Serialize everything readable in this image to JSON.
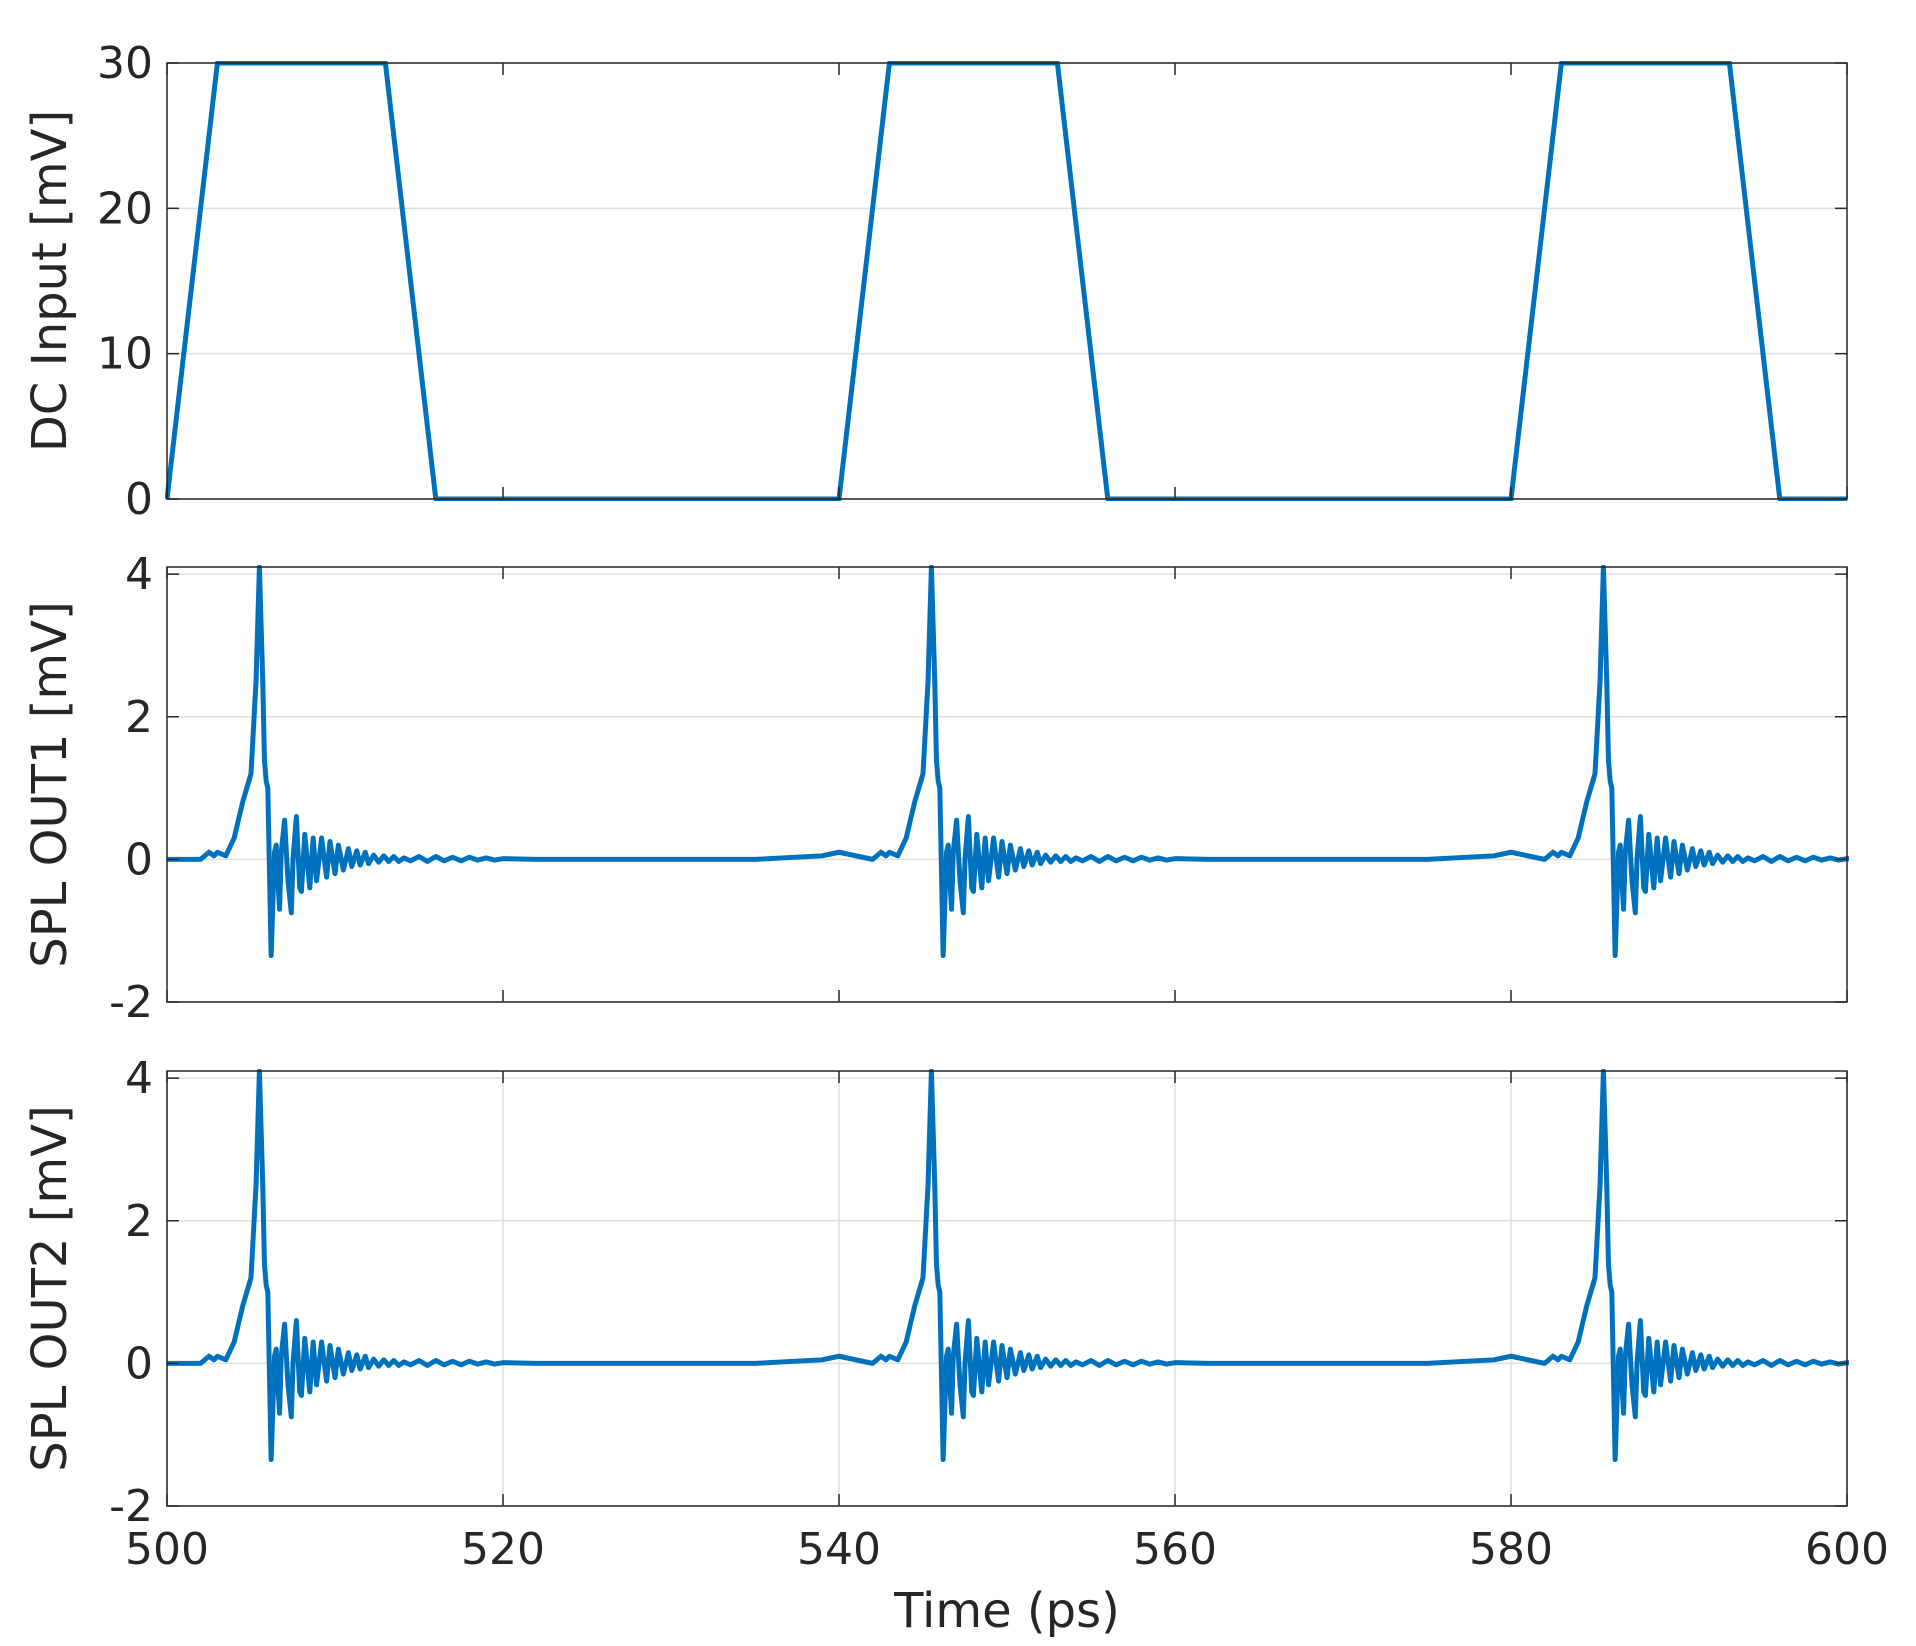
{
  "chart_data": [
    {
      "type": "line",
      "ylabel": "DC Input [mV]",
      "xlim": [
        500,
        600
      ],
      "ylim": [
        0,
        30
      ],
      "yticks": [
        0,
        10,
        20,
        30
      ],
      "ytick_labels": [
        "0",
        "10",
        "20",
        "30"
      ],
      "xticks": [
        500,
        520,
        540,
        560,
        580,
        600
      ],
      "show_xtick_labels": false,
      "grid": "horizontal",
      "series": [
        {
          "color": "#0072BD",
          "x": [
            500,
            503,
            513,
            516,
            540,
            543,
            553,
            556,
            580,
            583,
            593,
            596,
            600
          ],
          "y": [
            0,
            30,
            30,
            0,
            0,
            30,
            30,
            0,
            0,
            30,
            30,
            0,
            0
          ]
        }
      ]
    },
    {
      "type": "line",
      "ylabel": "SPL OUT1 [mV]",
      "xlim": [
        500,
        600
      ],
      "ylim": [
        -2,
        4.1
      ],
      "yticks": [
        -2,
        0,
        2,
        4
      ],
      "ytick_labels": [
        "-2",
        "0",
        "2",
        "4"
      ],
      "xticks": [
        500,
        520,
        540,
        560,
        580,
        600
      ],
      "show_xtick_labels": false,
      "grid": "horizontal",
      "pulse_times": [
        500,
        540,
        580
      ],
      "series": [
        {
          "color": "#0072BD",
          "pulse": {
            "x": [
              0,
              2.0,
              2.5,
              2.8,
              3.0,
              3.5,
              4.0,
              4.5,
              5.0,
              5.3,
              5.5,
              5.7,
              5.8,
              5.9,
              6.0,
              6.2,
              6.4,
              6.5,
              6.6,
              6.7,
              6.8,
              7.0,
              7.2,
              7.4,
              7.5,
              7.7,
              7.9,
              8.0,
              8.2,
              8.5,
              8.7,
              8.9,
              9.2,
              9.5,
              9.7,
              10.0,
              10.2,
              10.5,
              10.8,
              11.0,
              11.3,
              11.5,
              11.8,
              12.0,
              12.3,
              12.6,
              12.9,
              13.2,
              13.5,
              13.8,
              14.1,
              14.5,
              15.0,
              15.5,
              16.0,
              16.5,
              17.0,
              17.5,
              18.0,
              18.5,
              19.0,
              19.5,
              20.0,
              22.0,
              25.0,
              30.0,
              35.0,
              39.0,
              40.0
            ],
            "y": [
              0,
              0,
              0.1,
              0.05,
              0.1,
              0.05,
              0.3,
              0.8,
              1.2,
              2.5,
              4.1,
              2.5,
              1.4,
              1.1,
              1.0,
              -1.35,
              0.1,
              0.2,
              -0.3,
              -0.7,
              0.1,
              0.55,
              -0.3,
              -0.75,
              0.0,
              0.6,
              -0.4,
              -0.45,
              0.35,
              -0.4,
              0.3,
              -0.3,
              0.3,
              -0.25,
              0.25,
              -0.2,
              0.2,
              -0.15,
              0.15,
              -0.1,
              0.12,
              -0.08,
              0.1,
              -0.06,
              0.06,
              -0.04,
              0.05,
              -0.03,
              0.04,
              -0.03,
              0.02,
              -0.02,
              0.04,
              -0.03,
              0.04,
              -0.02,
              0.03,
              -0.02,
              0.03,
              -0.01,
              0.02,
              -0.01,
              0.01,
              0,
              0,
              0,
              0,
              0.05,
              0.1
            ]
          }
        }
      ]
    },
    {
      "type": "line",
      "ylabel": "SPL OUT2 [mV]",
      "xlabel": "Time (ps)",
      "xlim": [
        500,
        600
      ],
      "ylim": [
        -2,
        4.1
      ],
      "yticks": [
        -2,
        0,
        2,
        4
      ],
      "ytick_labels": [
        "-2",
        "0",
        "2",
        "4"
      ],
      "xticks": [
        500,
        520,
        540,
        560,
        580,
        600
      ],
      "xtick_labels": [
        "500",
        "520",
        "540",
        "560",
        "580",
        "600"
      ],
      "show_xtick_labels": true,
      "grid": "both",
      "pulse_times": [
        500,
        540,
        580
      ],
      "series": [
        {
          "color": "#0072BD",
          "pulse": {
            "x": [
              0,
              2.0,
              2.5,
              2.8,
              3.0,
              3.5,
              4.0,
              4.5,
              5.0,
              5.3,
              5.5,
              5.7,
              5.8,
              5.9,
              6.0,
              6.2,
              6.4,
              6.5,
              6.6,
              6.7,
              6.8,
              7.0,
              7.2,
              7.4,
              7.5,
              7.7,
              7.9,
              8.0,
              8.2,
              8.5,
              8.7,
              8.9,
              9.2,
              9.5,
              9.7,
              10.0,
              10.2,
              10.5,
              10.8,
              11.0,
              11.3,
              11.5,
              11.8,
              12.0,
              12.3,
              12.6,
              12.9,
              13.2,
              13.5,
              13.8,
              14.1,
              14.5,
              15.0,
              15.5,
              16.0,
              16.5,
              17.0,
              17.5,
              18.0,
              18.5,
              19.0,
              19.5,
              20.0,
              22.0,
              25.0,
              30.0,
              35.0,
              39.0,
              40.0
            ],
            "y": [
              0,
              0,
              0.1,
              0.05,
              0.1,
              0.05,
              0.3,
              0.8,
              1.2,
              2.5,
              4.1,
              2.5,
              1.4,
              1.1,
              1.0,
              -1.35,
              0.1,
              0.2,
              -0.3,
              -0.7,
              0.1,
              0.55,
              -0.3,
              -0.75,
              0.0,
              0.6,
              -0.4,
              -0.45,
              0.35,
              -0.4,
              0.3,
              -0.3,
              0.3,
              -0.25,
              0.25,
              -0.2,
              0.2,
              -0.15,
              0.15,
              -0.1,
              0.12,
              -0.08,
              0.1,
              -0.06,
              0.06,
              -0.04,
              0.05,
              -0.03,
              0.04,
              -0.03,
              0.02,
              -0.02,
              0.04,
              -0.03,
              0.04,
              -0.02,
              0.03,
              -0.02,
              0.03,
              -0.01,
              0.02,
              -0.01,
              0.01,
              0,
              0,
              0,
              0,
              0.05,
              0.1
            ]
          }
        }
      ]
    }
  ]
}
